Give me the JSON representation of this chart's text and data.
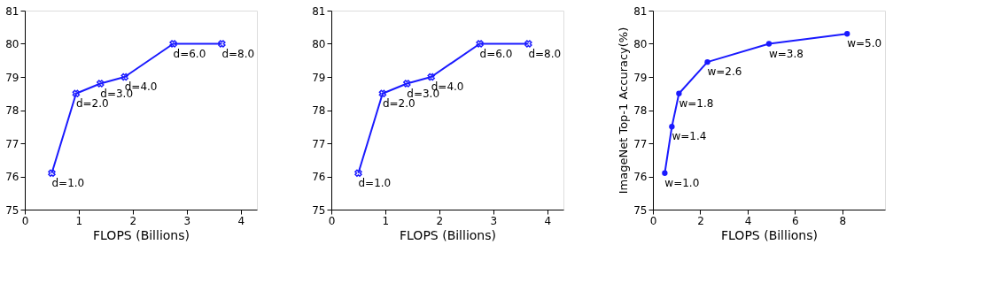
{
  "chart_data": [
    {
      "type": "line",
      "xlabel": "FLOPS (Billions)",
      "x": [
        0.5,
        0.95,
        1.4,
        1.85,
        2.75,
        3.65
      ],
      "series": [
        {
          "color": "#1a1aff",
          "values": [
            76.1,
            78.5,
            78.8,
            79.0,
            80.0,
            80.0
          ]
        }
      ],
      "xlim": [
        0,
        4.3
      ],
      "xticks": [
        0,
        1,
        2,
        3,
        4
      ],
      "ylim": [
        75,
        81
      ],
      "yticks": [
        75,
        76,
        77,
        78,
        79,
        80,
        81
      ],
      "marker": "cross",
      "grid": false,
      "annotations": [
        {
          "text": "d=1.0",
          "x": 0.5,
          "y": 76.1
        },
        {
          "text": "d=2.0",
          "x": 0.95,
          "y": 78.5
        },
        {
          "text": "d=3.0",
          "x": 1.4,
          "y": 78.8
        },
        {
          "text": "d=4.0",
          "x": 1.85,
          "y": 79.0
        },
        {
          "text": "d=6.0",
          "x": 2.75,
          "y": 80.0
        },
        {
          "text": "d=8.0",
          "x": 3.65,
          "y": 80.0
        }
      ]
    },
    {
      "type": "line",
      "xlabel": "FLOPS (Billions)",
      "x": [
        0.5,
        0.95,
        1.4,
        1.85,
        2.75,
        3.65
      ],
      "series": [
        {
          "color": "#1a1aff",
          "values": [
            76.1,
            78.5,
            78.8,
            79.0,
            80.0,
            80.0
          ]
        }
      ],
      "xlim": [
        0,
        4.3
      ],
      "xticks": [
        0,
        1,
        2,
        3,
        4
      ],
      "ylim": [
        75,
        81
      ],
      "yticks": [
        75,
        76,
        77,
        78,
        79,
        80,
        81
      ],
      "marker": "cross",
      "grid": false,
      "annotations": [
        {
          "text": "d=1.0",
          "x": 0.5,
          "y": 76.1
        },
        {
          "text": "d=2.0",
          "x": 0.95,
          "y": 78.5
        },
        {
          "text": "d=3.0",
          "x": 1.4,
          "y": 78.8
        },
        {
          "text": "d=4.0",
          "x": 1.85,
          "y": 79.0
        },
        {
          "text": "d=6.0",
          "x": 2.75,
          "y": 80.0
        },
        {
          "text": "d=8.0",
          "x": 3.65,
          "y": 80.0
        }
      ]
    },
    {
      "type": "line",
      "xlabel": "FLOPS (Billions)",
      "ylabel": "ImageNet Top-1 Accuracy(%)",
      "x": [
        0.5,
        0.8,
        1.1,
        2.3,
        4.9,
        8.2
      ],
      "series": [
        {
          "color": "#1a1aff",
          "values": [
            76.1,
            77.5,
            78.5,
            79.45,
            80.0,
            80.3
          ]
        }
      ],
      "xlim": [
        0,
        9.8
      ],
      "xticks": [
        0,
        2,
        4,
        6,
        8
      ],
      "ylim": [
        75,
        81
      ],
      "yticks": [
        75,
        76,
        77,
        78,
        79,
        80,
        81
      ],
      "marker": "circle",
      "grid": false,
      "annotations": [
        {
          "text": "w=1.0",
          "x": 0.5,
          "y": 76.1
        },
        {
          "text": "w=1.4",
          "x": 0.8,
          "y": 77.5
        },
        {
          "text": "w=1.8",
          "x": 1.1,
          "y": 78.5
        },
        {
          "text": "w=2.6",
          "x": 2.3,
          "y": 79.45
        },
        {
          "text": "w=3.8",
          "x": 4.9,
          "y": 80.0
        },
        {
          "text": "w=5.0",
          "x": 8.2,
          "y": 80.3
        }
      ]
    }
  ]
}
